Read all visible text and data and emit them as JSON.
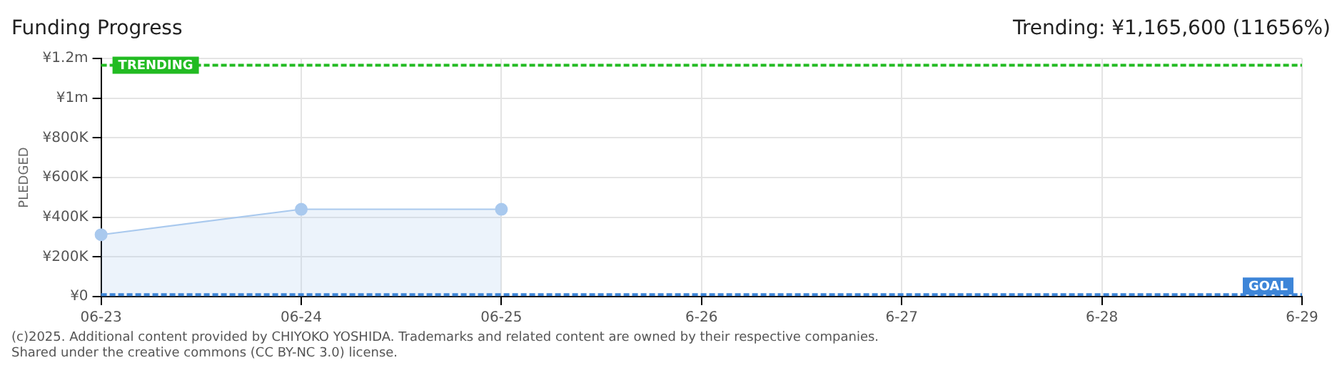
{
  "chart_data": {
    "type": "area",
    "title": "Funding Progress",
    "subtitle": "Trending:  ¥1,165,600 (11656%)",
    "ylabel": "PLEDGED",
    "categories": [
      "06-23",
      "06-24",
      "06-25",
      "6-26",
      "6-27",
      "6-28",
      "6-29"
    ],
    "series": [
      {
        "color": "#a9c9ee",
        "values": [
          312000,
          440000,
          440000,
          null,
          null,
          null,
          null
        ]
      }
    ],
    "ylim": [
      0,
      1200000
    ],
    "yticks": [
      {
        "value": 0,
        "label": "¥0"
      },
      {
        "value": 200000,
        "label": "¥200K"
      },
      {
        "value": 400000,
        "label": "¥400K"
      },
      {
        "value": 600000,
        "label": "¥600K"
      },
      {
        "value": 800000,
        "label": "¥800K"
      },
      {
        "value": 1000000,
        "label": "¥1m"
      },
      {
        "value": 1200000,
        "label": "¥1.2m"
      }
    ],
    "ref_lines": [
      {
        "axis": "y",
        "value": 1165600,
        "label": "TRENDING",
        "color": "#22bb22",
        "line_style": "dashed"
      },
      {
        "axis": "y",
        "value": 10000,
        "label": "GOAL",
        "color": "#3d85d8",
        "line_style": "dashed"
      }
    ],
    "grid": true,
    "legend": false,
    "marker": "circle",
    "annotations": [
      "(c)2025. Additional content provided by CHIYOKO YOSHIDA. Trademarks and related content are owned by their respective companies.",
      "Shared under the creative commons (CC BY-NC 3.0) license."
    ]
  }
}
